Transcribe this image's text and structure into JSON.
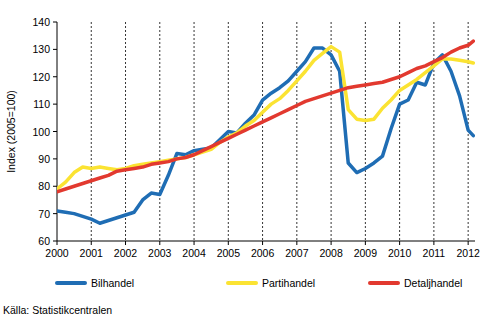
{
  "chart_data": {
    "type": "line",
    "y_label": "Index (2005=100)",
    "source": "Källa: Statistikcentralen",
    "x": [
      2000,
      2000.25,
      2000.5,
      2000.75,
      2001,
      2001.25,
      2001.5,
      2001.75,
      2002,
      2002.25,
      2002.5,
      2002.75,
      2003,
      2003.25,
      2003.5,
      2003.75,
      2004,
      2004.25,
      2004.5,
      2004.75,
      2005,
      2005.25,
      2005.5,
      2005.75,
      2006,
      2006.25,
      2006.5,
      2006.75,
      2007,
      2007.25,
      2007.5,
      2007.75,
      2008,
      2008.25,
      2008.5,
      2008.75,
      2009,
      2009.25,
      2009.5,
      2009.75,
      2010,
      2010.25,
      2010.5,
      2010.75,
      2011,
      2011.25,
      2011.5,
      2011.75,
      2012,
      2012.15
    ],
    "series": [
      {
        "name": "Bilhandel",
        "color": "#1f6db4",
        "values": [
          71,
          70.5,
          70,
          69,
          68,
          66.5,
          67.5,
          68.5,
          69.5,
          70.5,
          75,
          77.5,
          77,
          84,
          92,
          91.5,
          93,
          93.5,
          94,
          97,
          100,
          99.5,
          103,
          106,
          111.5,
          114,
          116,
          118.5,
          122,
          125.5,
          130.5,
          130.5,
          128,
          122,
          88.5,
          85,
          86.5,
          88.5,
          91,
          101,
          110,
          111.5,
          118,
          117,
          125,
          128,
          122,
          113,
          100.5,
          98.5
        ]
      },
      {
        "name": "Partihandel",
        "color": "#fbe332",
        "values": [
          79,
          81.5,
          85,
          87,
          86.5,
          87,
          86.5,
          86,
          86.5,
          87.5,
          88,
          88.5,
          89,
          89.5,
          90,
          90.5,
          91.5,
          92.5,
          93.5,
          96,
          98,
          99.5,
          102,
          104,
          107,
          110,
          112,
          115,
          118.5,
          122,
          126,
          128.5,
          131,
          129,
          108,
          104.5,
          104,
          104.5,
          108.5,
          111.5,
          115,
          117,
          119,
          121.5,
          124,
          126.5,
          126.5,
          126,
          125.5,
          125
        ]
      },
      {
        "name": "Detaljhandel",
        "color": "#e2392f",
        "values": [
          78,
          79,
          80,
          81,
          82,
          83,
          84,
          85.5,
          86,
          86.5,
          87,
          88,
          88.5,
          89,
          90,
          90.5,
          91.5,
          93,
          94.5,
          96,
          97.5,
          99,
          100.5,
          102,
          103.5,
          105,
          106.5,
          108,
          109.5,
          111,
          112,
          113,
          114,
          115,
          116,
          116.5,
          117,
          117.5,
          118,
          119,
          120,
          121.5,
          123,
          124,
          125.5,
          127,
          129,
          130.5,
          131.5,
          133
        ]
      }
    ],
    "xlim": [
      2000,
      2012.2
    ],
    "xticks": [
      2000,
      2001,
      2002,
      2003,
      2004,
      2005,
      2006,
      2007,
      2008,
      2009,
      2010,
      2011,
      2012
    ],
    "ylim": [
      60,
      140
    ],
    "yticks": [
      60,
      70,
      80,
      90,
      100,
      110,
      120,
      130,
      140
    ],
    "grid": "x",
    "legend": "bottom"
  }
}
